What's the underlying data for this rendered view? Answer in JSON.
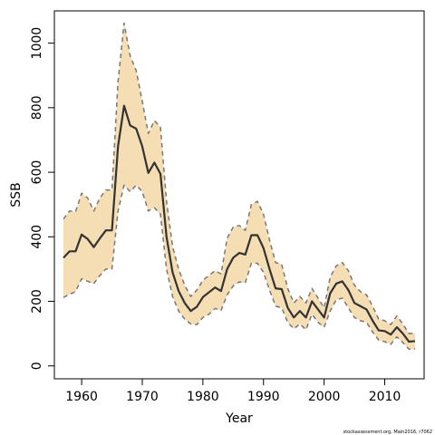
{
  "chart_data": {
    "type": "line",
    "xlabel": "Year",
    "ylabel": "SSB",
    "xlim": [
      1955.5,
      2016.5
    ],
    "ylim": [
      -40,
      1100
    ],
    "x_ticks": [
      1960,
      1970,
      1980,
      1990,
      2000,
      2010
    ],
    "y_ticks": [
      0,
      200,
      400,
      600,
      800,
      1000
    ],
    "grid": false,
    "credit": "stockassessment.org, Main2016, r7062",
    "colors": {
      "band": "#f5deb3",
      "estimate": "#333333",
      "bounds": "#777777"
    },
    "x": [
      1957,
      1958,
      1959,
      1960,
      1961,
      1962,
      1963,
      1964,
      1965,
      1966,
      1967,
      1968,
      1969,
      1970,
      1971,
      1972,
      1973,
      1974,
      1975,
      1976,
      1977,
      1978,
      1979,
      1980,
      1981,
      1982,
      1983,
      1984,
      1985,
      1986,
      1987,
      1988,
      1989,
      1990,
      1991,
      1992,
      1993,
      1994,
      1995,
      1996,
      1997,
      1998,
      1999,
      2000,
      2001,
      2002,
      2003,
      2004,
      2005,
      2006,
      2007,
      2008,
      2009,
      2010,
      2011,
      2012,
      2013,
      2014,
      2015
    ],
    "series": [
      {
        "role": "estimate",
        "values": [
          335,
          355,
          355,
          407,
          393,
          368,
          395,
          420,
          420,
          680,
          806,
          745,
          735,
          680,
          598,
          630,
          595,
          400,
          290,
          232,
          195,
          170,
          183,
          213,
          228,
          243,
          232,
          300,
          335,
          350,
          345,
          405,
          405,
          365,
          300,
          240,
          238,
          180,
          150,
          170,
          150,
          200,
          175,
          150,
          225,
          255,
          262,
          235,
          195,
          185,
          175,
          140,
          110,
          108,
          97,
          120,
          100,
          75,
          77
        ]
      },
      {
        "role": "upper",
        "values": [
          455,
          480,
          478,
          535,
          520,
          480,
          520,
          545,
          545,
          880,
          1062,
          960,
          915,
          820,
          720,
          760,
          740,
          510,
          370,
          300,
          250,
          215,
          235,
          265,
          280,
          295,
          285,
          395,
          430,
          435,
          420,
          500,
          510,
          470,
          390,
          320,
          315,
          240,
          195,
          215,
          195,
          240,
          210,
          180,
          275,
          310,
          320,
          295,
          250,
          230,
          220,
          185,
          145,
          140,
          128,
          155,
          130,
          100,
          102
        ]
      },
      {
        "role": "lower",
        "values": [
          212,
          222,
          230,
          270,
          262,
          255,
          280,
          300,
          300,
          480,
          560,
          540,
          560,
          540,
          480,
          490,
          470,
          300,
          215,
          170,
          145,
          130,
          128,
          150,
          160,
          178,
          172,
          220,
          248,
          260,
          258,
          318,
          318,
          290,
          235,
          185,
          180,
          135,
          115,
          130,
          112,
          160,
          135,
          120,
          170,
          205,
          210,
          180,
          150,
          140,
          135,
          105,
          80,
          75,
          67,
          90,
          72,
          52,
          52
        ]
      }
    ]
  }
}
